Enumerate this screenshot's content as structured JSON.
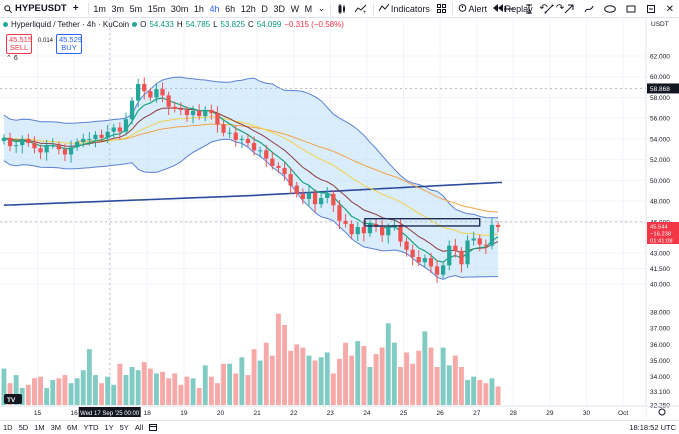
{
  "toolbar": {
    "symbol": "HYPEUSDT",
    "intervals": [
      "1m",
      "3m",
      "5m",
      "15m",
      "30m",
      "1h",
      "4h",
      "6h",
      "12h",
      "D",
      "3D",
      "W",
      "M"
    ],
    "active_interval": "4h",
    "indicators_label": "Indicators",
    "alert_label": "Alert",
    "replay_label": "Replay"
  },
  "legend": {
    "title": "Hyperliquid / Tether · 4h · KuCoin",
    "o_label": "O",
    "o_value": "54.433",
    "h_label": "H",
    "h_value": "54.785",
    "l_label": "L",
    "l_value": "53.825",
    "c_label": "C",
    "c_value": "54.099",
    "change": "−0.315 (−0.58%)"
  },
  "trade": {
    "sell_price": "45.515",
    "sell_label": "SELL",
    "spread": "0.014",
    "buy_price": "45.529",
    "buy_label": "BUY",
    "collapse_label": "6"
  },
  "price_axis": {
    "currency": "USDT",
    "ticks": [
      "62.000",
      "60.000",
      "58.000",
      "56.000",
      "54.000",
      "52.000",
      "50.000",
      "48.000",
      "46.000",
      "43.000",
      "41.500",
      "40.000",
      "38.000",
      "37.000",
      "36.000",
      "35.000",
      "34.000",
      "33.100",
      "32.250"
    ],
    "crosshair_label": "58.868",
    "last_price": "45.544",
    "last_change": "−16.238",
    "countdown": "01:41:08"
  },
  "time_axis": {
    "ticks": [
      "15",
      "16",
      "17",
      "18",
      "19",
      "20",
      "21",
      "22",
      "23",
      "24",
      "25",
      "26",
      "27",
      "28",
      "29",
      "30",
      "Oct"
    ],
    "crosshair_label": "Wed 17 Sep '25   00:00"
  },
  "bottom_bar": {
    "ranges": [
      "1D",
      "5D",
      "1M",
      "3M",
      "6M",
      "YTD",
      "1Y",
      "5Y",
      "All"
    ],
    "clock": "18:18:52 UTC"
  },
  "colors": {
    "up": "#26a69a",
    "down": "#ef5350",
    "vol_up": "#80cbc4",
    "vol_down": "#f7a9a7",
    "band_fill": "#bbdefb",
    "band_line": "#5b7fd6",
    "ma_long": "#2e4c9e",
    "ma_orange": "#f0a34a",
    "ma_yellow": "#f2d14b",
    "ma_maroon": "#8c3b3b",
    "ma_teal": "#1aa37a",
    "box": "#1c2b5a"
  },
  "chart_data": {
    "type": "candlestick",
    "x": [
      "14",
      "14",
      "14",
      "14",
      "15",
      "15",
      "15",
      "15",
      "15",
      "15",
      "16",
      "16",
      "16",
      "16",
      "16",
      "16",
      "17",
      "17",
      "17",
      "17",
      "17",
      "17",
      "18",
      "18",
      "18",
      "18",
      "18",
      "18",
      "19",
      "19",
      "19",
      "19",
      "19",
      "19",
      "20",
      "20",
      "20",
      "20",
      "20",
      "20",
      "21",
      "21",
      "21",
      "21",
      "21",
      "21",
      "22",
      "22",
      "22",
      "22",
      "22",
      "22",
      "23",
      "23",
      "23",
      "23",
      "23",
      "23",
      "24",
      "24",
      "24",
      "24",
      "24",
      "24",
      "25",
      "25",
      "25",
      "25",
      "25",
      "25",
      "26",
      "26",
      "26",
      "26",
      "26",
      "26",
      "27",
      "27",
      "27",
      "27",
      "27",
      "27"
    ],
    "open": [
      53.8,
      54.1,
      53.3,
      53.4,
      54.0,
      53.6,
      53.1,
      52.7,
      53.4,
      53.4,
      53.0,
      52.5,
      53.2,
      53.7,
      54.0,
      54.0,
      54.4,
      54.1,
      54.7,
      55.1,
      54.7,
      55.9,
      57.7,
      59.3,
      58.6,
      58.0,
      58.8,
      58.2,
      57.1,
      56.9,
      56.8,
      56.3,
      56.7,
      56.2,
      56.8,
      56.5,
      55.4,
      54.6,
      54.6,
      53.9,
      54.0,
      53.6,
      52.9,
      52.9,
      52.1,
      51.4,
      51.2,
      50.6,
      49.5,
      48.7,
      48.2,
      48.8,
      47.7,
      48.3,
      48.7,
      47.6,
      46.1,
      45.8,
      44.8,
      45.5,
      44.9,
      45.8,
      45.5,
      44.7,
      45.5,
      45.7,
      44.1,
      43.3,
      42.6,
      42.1,
      42.5,
      41.7,
      40.9,
      41.8,
      43.7,
      43.2,
      41.9,
      44.2,
      44.4,
      43.8,
      43.7,
      45.7
    ],
    "close": [
      54.1,
      53.3,
      53.4,
      54.0,
      53.6,
      53.1,
      52.7,
      53.4,
      53.4,
      53.0,
      52.5,
      53.2,
      53.7,
      54.0,
      54.0,
      54.4,
      54.1,
      54.7,
      55.1,
      54.7,
      55.9,
      57.7,
      59.3,
      58.6,
      58.0,
      58.8,
      58.2,
      57.1,
      56.9,
      56.8,
      56.3,
      56.7,
      56.2,
      56.8,
      56.5,
      55.4,
      54.6,
      54.6,
      53.9,
      54.0,
      53.6,
      52.9,
      52.9,
      52.1,
      51.4,
      51.2,
      50.6,
      49.5,
      48.7,
      48.2,
      48.8,
      47.7,
      48.3,
      48.7,
      47.6,
      46.1,
      45.8,
      44.8,
      45.5,
      44.9,
      45.8,
      45.5,
      44.7,
      45.5,
      45.7,
      44.1,
      43.3,
      42.6,
      42.1,
      42.5,
      41.7,
      40.9,
      41.8,
      43.7,
      43.2,
      41.9,
      44.2,
      44.4,
      43.8,
      43.7,
      45.7,
      45.5
    ],
    "volume": [
      34.5,
      33.6,
      34.1,
      33.3,
      33.5,
      33.9,
      34.0,
      33.3,
      33.8,
      33.9,
      34.1,
      33.6,
      33.9,
      34.4,
      35.7,
      34.1,
      33.6,
      34.0,
      33.5,
      34.8,
      34.1,
      34.6,
      34.4,
      34.9,
      34.5,
      34.2,
      34.3,
      33.9,
      34.2,
      33.5,
      34.0,
      33.9,
      33.3,
      34.7,
      34.0,
      33.6,
      34.8,
      34.8,
      34.2,
      35.2,
      34.1,
      35.7,
      35.0,
      36.1,
      35.3,
      37.9,
      37.2,
      35.6,
      36.0,
      35.8,
      35.3,
      35.0,
      35.2,
      35.5,
      34.2,
      35.1,
      36.1,
      35.3,
      36.2,
      35.9,
      34.6,
      35.4,
      35.8,
      37.3,
      36.1,
      34.6,
      35.5,
      34.8,
      35.6,
      36.8,
      35.8,
      34.6,
      35.8,
      34.7,
      35.3,
      34.6,
      33.8,
      34.0,
      33.8,
      33.6,
      33.9,
      33.4
    ],
    "ylim": [
      32.25,
      62.0
    ],
    "overlays": [
      {
        "name": "",
        "kind": "bollinger_upper"
      },
      {
        "name": "",
        "kind": "bollinger_lower"
      },
      {
        "name": "",
        "kind": "moving_average_long"
      },
      {
        "name": "",
        "kind": "moving_average_medium"
      },
      {
        "name": "",
        "kind": "moving_average_short"
      }
    ],
    "annotations": [
      {
        "kind": "rectangle",
        "y_range": [
          45.6,
          46.3
        ],
        "x_range": [
          "24",
          "27"
        ]
      }
    ],
    "horizontal_lines": [
      46.0,
      58.868
    ],
    "vertical_lines": [
      "17"
    ]
  }
}
